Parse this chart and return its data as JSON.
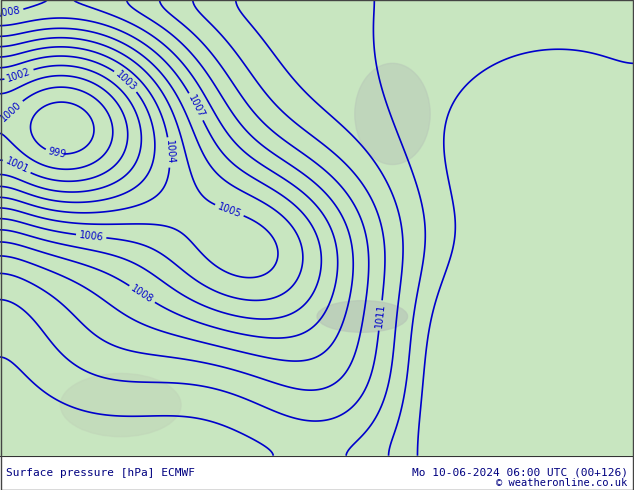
{
  "title_left": "Surface pressure [hPa] ECMWF",
  "title_right": "Mo 10-06-2024 06:00 UTC (00+126)",
  "copyright": "© weatheronline.co.uk",
  "bg_color": "#c8e6c0",
  "land_color": "#c8e6c0",
  "sea_color": "#d8efd8",
  "contour_color": "#0000cc",
  "label_color": "#0000cc",
  "border_color": "#888888",
  "bottom_bar_color": "#ffffff",
  "bottom_text_color": "#000080",
  "figsize": [
    6.34,
    4.9
  ],
  "dpi": 100
}
